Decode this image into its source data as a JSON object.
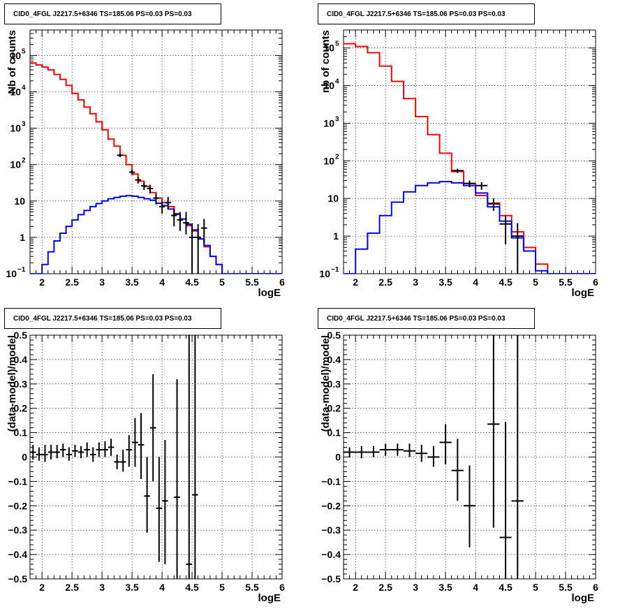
{
  "chart_data": [
    {
      "id": "top-left",
      "type": "histogram",
      "title": "CID0_4FGL J2217.5+6346 TS=185.06 PS=0.03 PS=0.03",
      "xlabel": "logE",
      "ylabel": "Nb of counts",
      "xlim": [
        1.8,
        6.0
      ],
      "ylim": [
        0.1,
        500000
      ],
      "yscale": "log",
      "grid": true,
      "xticks": [
        2,
        2.5,
        3,
        3.5,
        4,
        4.5,
        5,
        5.5,
        6
      ],
      "xtick_labels": [
        "2",
        "2.5",
        "3",
        "3.5",
        "4",
        "4.5",
        "5",
        "5.5",
        "6"
      ],
      "ytick_labels": [
        {
          "value": 0.1,
          "label": "10",
          "exp": "−1"
        },
        {
          "value": 1,
          "label": "1",
          "exp": ""
        },
        {
          "value": 10,
          "label": "10",
          "exp": ""
        },
        {
          "value": 100,
          "label": "10",
          "exp": "2"
        },
        {
          "value": 1000,
          "label": "10",
          "exp": "3"
        },
        {
          "value": 10000,
          "label": "10",
          "exp": "4"
        },
        {
          "value": 100000,
          "label": "10",
          "exp": "5"
        }
      ],
      "bin_edges": [
        1.8,
        1.9,
        2.0,
        2.1,
        2.2,
        2.3,
        2.4,
        2.5,
        2.6,
        2.7,
        2.8,
        2.9,
        3.0,
        3.1,
        3.2,
        3.3,
        3.4,
        3.5,
        3.6,
        3.7,
        3.8,
        3.9,
        4.0,
        4.1,
        4.2,
        4.3,
        4.4,
        4.5,
        4.6,
        4.7,
        4.8,
        4.9,
        5.0,
        5.1,
        5.2,
        5.3,
        5.4,
        5.5,
        5.6,
        5.7,
        5.8,
        5.9,
        6.0
      ],
      "series": [
        {
          "color": "#ff0000",
          "values": [
            62000,
            55000,
            48000,
            40000,
            30000,
            22000,
            15000,
            9000,
            6000,
            3800,
            2500,
            1500,
            900,
            500,
            320,
            180,
            100,
            55,
            35,
            25,
            17,
            12,
            9,
            7,
            4.5,
            3.2,
            2.1,
            1.5,
            0.9,
            0.55,
            0.3,
            0.18,
            0.1,
            0.1,
            0.1,
            0.1,
            0.1,
            0.1,
            0.1,
            0.1,
            0.1,
            0.1
          ]
        },
        {
          "color": "#0000ff",
          "values": [
            0.09,
            0.1,
            0.18,
            0.4,
            0.8,
            1.3,
            2.0,
            3.0,
            4.2,
            5.5,
            7.0,
            8.5,
            10,
            11.5,
            12.5,
            13.5,
            14,
            13.5,
            12.5,
            11.5,
            10.5,
            8.7,
            7.5,
            6.0,
            4.3,
            3.2,
            2.3,
            1.6,
            0.9,
            0.6,
            0.3,
            0.18,
            0.1,
            0.1,
            0.1,
            0.1,
            0.1,
            0.1,
            0.1,
            0.1,
            0.1,
            0.1
          ]
        }
      ],
      "points": [
        {
          "x": 3.3,
          "y": 180,
          "lo": 160,
          "hi": 200
        },
        {
          "x": 3.5,
          "y": 62,
          "lo": 52,
          "hi": 72
        },
        {
          "x": 3.6,
          "y": 38,
          "lo": 30,
          "hi": 46
        },
        {
          "x": 3.7,
          "y": 26,
          "lo": 20,
          "hi": 32
        },
        {
          "x": 3.8,
          "y": 22,
          "lo": 16,
          "hi": 28
        },
        {
          "x": 3.9,
          "y": 12,
          "lo": 8,
          "hi": 16
        },
        {
          "x": 4.0,
          "y": 7,
          "lo": 4.5,
          "hi": 10
        },
        {
          "x": 4.1,
          "y": 9,
          "lo": 6,
          "hi": 13
        },
        {
          "x": 4.2,
          "y": 4,
          "lo": 2,
          "hi": 6
        },
        {
          "x": 4.3,
          "y": 3,
          "lo": 1.5,
          "hi": 5
        },
        {
          "x": 4.4,
          "y": 2.5,
          "lo": 1.2,
          "hi": 5
        },
        {
          "x": 4.5,
          "y": 1,
          "lo": 0.08,
          "hi": 2.3
        },
        {
          "x": 4.6,
          "y": 1,
          "lo": 0.08,
          "hi": 2.3
        },
        {
          "x": 4.7,
          "y": 1.8,
          "lo": 0.7,
          "hi": 3.2
        }
      ]
    },
    {
      "id": "top-right",
      "type": "histogram",
      "title": "CID0_4FGL J2217.5+6346 TS=185.06 PS=0.03 PS=0.03",
      "xlabel": "logE",
      "ylabel": "nb of counts",
      "xlim": [
        1.8,
        6.0
      ],
      "ylim": [
        0.1,
        300000
      ],
      "yscale": "log",
      "grid": true,
      "xticks": [
        2,
        2.5,
        3,
        3.5,
        4,
        4.5,
        5,
        5.5,
        6
      ],
      "xtick_labels": [
        "2",
        "2.5",
        "3",
        "3.5",
        "4",
        "4.5",
        "5",
        "5.5",
        "6"
      ],
      "ytick_labels": [
        {
          "value": 0.1,
          "label": "10",
          "exp": "−1"
        },
        {
          "value": 1,
          "label": "1",
          "exp": ""
        },
        {
          "value": 10,
          "label": "10",
          "exp": ""
        },
        {
          "value": 100,
          "label": "10",
          "exp": "2"
        },
        {
          "value": 1000,
          "label": "10",
          "exp": "3"
        },
        {
          "value": 10000,
          "label": "10",
          "exp": "4"
        },
        {
          "value": 100000,
          "label": "10",
          "exp": "5"
        }
      ],
      "bin_edges": [
        1.8,
        2.0,
        2.2,
        2.4,
        2.6,
        2.8,
        3.0,
        3.2,
        3.4,
        3.6,
        3.8,
        4.0,
        4.2,
        4.4,
        4.6,
        4.8,
        5.0,
        5.2,
        5.4,
        5.6,
        5.8,
        6.0
      ],
      "series": [
        {
          "color": "#ff0000",
          "values": [
            130000,
            110000,
            75000,
            33000,
            13000,
            4500,
            1500,
            500,
            160,
            52,
            25,
            12,
            7.5,
            3.5,
            1.3,
            0.5,
            0.18,
            0.1,
            0.1,
            0.1,
            0.1
          ]
        },
        {
          "color": "#0000ff",
          "values": [
            0.1,
            0.45,
            1.2,
            3.5,
            8,
            15,
            22,
            26,
            28,
            26,
            22,
            14,
            6,
            2.5,
            0.9,
            0.4,
            0.12,
            0.1,
            0.1,
            0.1,
            0.1
          ]
        }
      ],
      "points": [
        {
          "x": 3.7,
          "y": 55,
          "lo": 48,
          "hi": 62
        },
        {
          "x": 3.9,
          "y": 25,
          "lo": 20,
          "hi": 30
        },
        {
          "x": 4.1,
          "y": 22,
          "lo": 17,
          "hi": 27
        },
        {
          "x": 4.3,
          "y": 7.2,
          "lo": 4.7,
          "hi": 10
        },
        {
          "x": 4.5,
          "y": 2.1,
          "lo": 0.6,
          "hi": 3.5
        },
        {
          "x": 4.7,
          "y": 1,
          "lo": 0.08,
          "hi": 2.2
        }
      ]
    },
    {
      "id": "bottom-left",
      "type": "scatter",
      "title": "CID0_4FGL J2217.5+6346 TS=185.06 PS=0.03 PS=0.03",
      "xlabel": "logE",
      "ylabel": "(data-model)/model",
      "xlim": [
        1.8,
        6.0
      ],
      "ylim": [
        -0.5,
        0.5
      ],
      "yscale": "linear",
      "grid": true,
      "xticks": [
        2,
        2.5,
        3,
        3.5,
        4,
        4.5,
        5,
        5.5,
        6
      ],
      "xtick_labels": [
        "2",
        "2.5",
        "3",
        "3.5",
        "4",
        "4.5",
        "5",
        "5.5",
        "6"
      ],
      "yticks": [
        -0.5,
        -0.4,
        -0.3,
        -0.2,
        -0.1,
        0,
        0.1,
        0.2,
        0.3,
        0.4,
        0.5
      ],
      "ytick_labels": [
        "−0.5",
        "−0.4",
        "−0.3",
        "−0.2",
        "−0.1",
        "0",
        "0.1",
        "0.2",
        "0.3",
        "0.4",
        "0.5"
      ],
      "bin_width": 0.1,
      "points": [
        {
          "x": 1.85,
          "y": 0.02,
          "lo": -0.01,
          "hi": 0.05
        },
        {
          "x": 1.95,
          "y": 0.01,
          "lo": -0.015,
          "hi": 0.04
        },
        {
          "x": 2.05,
          "y": 0.01,
          "lo": -0.02,
          "hi": 0.05
        },
        {
          "x": 2.15,
          "y": 0.02,
          "lo": -0.01,
          "hi": 0.05
        },
        {
          "x": 2.25,
          "y": 0.02,
          "lo": -0.005,
          "hi": 0.05
        },
        {
          "x": 2.35,
          "y": 0.03,
          "lo": 0.0,
          "hi": 0.055
        },
        {
          "x": 2.45,
          "y": 0.01,
          "lo": -0.015,
          "hi": 0.04
        },
        {
          "x": 2.55,
          "y": 0.025,
          "lo": 0.0,
          "hi": 0.05
        },
        {
          "x": 2.65,
          "y": 0.02,
          "lo": -0.005,
          "hi": 0.045
        },
        {
          "x": 2.75,
          "y": 0.03,
          "lo": 0.0,
          "hi": 0.06
        },
        {
          "x": 2.85,
          "y": 0.01,
          "lo": -0.02,
          "hi": 0.04
        },
        {
          "x": 2.95,
          "y": 0.03,
          "lo": 0.0,
          "hi": 0.06
        },
        {
          "x": 3.05,
          "y": 0.03,
          "lo": 0.0,
          "hi": 0.065
        },
        {
          "x": 3.15,
          "y": 0.04,
          "lo": 0.005,
          "hi": 0.075
        },
        {
          "x": 3.25,
          "y": -0.02,
          "lo": -0.05,
          "hi": 0.01
        },
        {
          "x": 3.35,
          "y": -0.02,
          "lo": -0.06,
          "hi": 0.03
        },
        {
          "x": 3.45,
          "y": 0.03,
          "lo": -0.04,
          "hi": 0.09
        },
        {
          "x": 3.55,
          "y": 0.06,
          "lo": -0.04,
          "hi": 0.16
        },
        {
          "x": 3.65,
          "y": 0.05,
          "lo": -0.09,
          "hi": 0.18
        },
        {
          "x": 3.75,
          "y": -0.16,
          "lo": -0.31,
          "hi": -0.0
        },
        {
          "x": 3.85,
          "y": 0.12,
          "lo": -0.1,
          "hi": 0.34
        },
        {
          "x": 3.95,
          "y": -0.21,
          "lo": -0.43,
          "hi": 0.0
        },
        {
          "x": 4.05,
          "y": -0.18,
          "lo": -0.44,
          "hi": 0.07
        },
        {
          "x": 4.25,
          "y": -0.165,
          "lo": -0.5,
          "hi": 0.32
        },
        {
          "x": 4.45,
          "y": -0.44,
          "lo": -0.5,
          "hi": 0.5
        },
        {
          "x": 4.55,
          "y": -0.155,
          "lo": -0.5,
          "hi": 0.5
        }
      ]
    },
    {
      "id": "bottom-right",
      "type": "scatter",
      "title": "CID0_4FGL J2217.5+6346 TS=185.06 PS=0.03 PS=0.03",
      "xlabel": "logE",
      "ylabel": "(data-model)/model",
      "xlim": [
        1.8,
        6.0
      ],
      "ylim": [
        -0.5,
        0.5
      ],
      "yscale": "linear",
      "grid": true,
      "xticks": [
        2,
        2.5,
        3,
        3.5,
        4,
        4.5,
        5,
        5.5,
        6
      ],
      "xtick_labels": [
        "2",
        "2.5",
        "3",
        "3.5",
        "4",
        "4.5",
        "5",
        "5.5",
        "6"
      ],
      "yticks": [
        -0.5,
        -0.4,
        -0.3,
        -0.2,
        -0.1,
        0,
        0.1,
        0.2,
        0.3,
        0.4,
        0.5
      ],
      "ytick_labels": [
        "−0.5",
        "−0.4",
        "−0.3",
        "−0.2",
        "−0.1",
        "0",
        "0.1",
        "0.2",
        "0.3",
        "0.4",
        "0.5"
      ],
      "bin_width": 0.2,
      "points": [
        {
          "x": 1.9,
          "y": 0.02,
          "lo": 0.0,
          "hi": 0.04
        },
        {
          "x": 2.1,
          "y": 0.02,
          "lo": -0.005,
          "hi": 0.045
        },
        {
          "x": 2.3,
          "y": 0.02,
          "lo": 0.0,
          "hi": 0.045
        },
        {
          "x": 2.5,
          "y": 0.03,
          "lo": 0.005,
          "hi": 0.055
        },
        {
          "x": 2.7,
          "y": 0.03,
          "lo": 0.005,
          "hi": 0.055
        },
        {
          "x": 2.9,
          "y": 0.025,
          "lo": 0.0,
          "hi": 0.055
        },
        {
          "x": 3.1,
          "y": 0.015,
          "lo": -0.02,
          "hi": 0.05
        },
        {
          "x": 3.3,
          "y": 0.0,
          "lo": -0.04,
          "hi": 0.045
        },
        {
          "x": 3.5,
          "y": 0.06,
          "lo": -0.03,
          "hi": 0.135
        },
        {
          "x": 3.7,
          "y": -0.055,
          "lo": -0.18,
          "hi": 0.075
        },
        {
          "x": 3.9,
          "y": -0.2,
          "lo": -0.37,
          "hi": -0.035
        },
        {
          "x": 4.3,
          "y": 0.135,
          "lo": -0.29,
          "hi": 0.5
        },
        {
          "x": 4.5,
          "y": -0.33,
          "lo": -0.5,
          "hi": 0.145
        },
        {
          "x": 4.7,
          "y": -0.18,
          "lo": -0.5,
          "hi": 0.5
        }
      ]
    }
  ]
}
